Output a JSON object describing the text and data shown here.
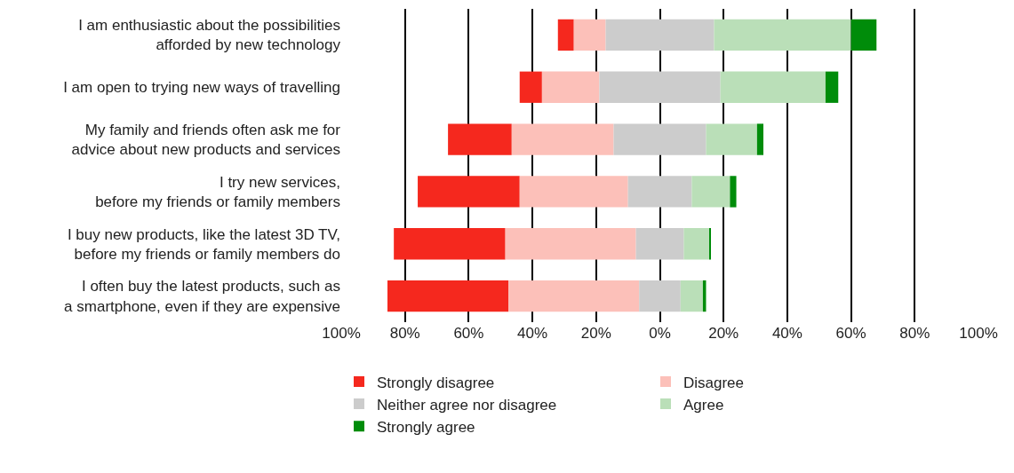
{
  "chart_data": {
    "type": "bar",
    "orientation": "horizontal",
    "categories": [
      "I am enthusiastic about the possibilities\nafforded by new technology",
      "I am open to trying new ways of travelling",
      "My family and friends often ask me for\nadvice about new products and services",
      "I try new services,\nbefore my friends or family members",
      "I buy new products, like the latest 3D TV,\nbefore my friends or family members do",
      "I often buy the latest products, such as\na smartphone, even if they are expensive"
    ],
    "series": [
      {
        "name": "Strongly disagree",
        "color": "#f5281e",
        "values": [
          5,
          7,
          20,
          32,
          35,
          38
        ],
        "base": [
          -32,
          -44,
          -66.5,
          -76,
          -83.5,
          -85.5
        ]
      },
      {
        "name": "Disagree",
        "color": "#fcc0b9",
        "values": [
          10,
          18,
          32,
          34,
          41,
          41
        ],
        "base": [
          -27,
          -37,
          -46.5,
          -44,
          -48.5,
          -47.5
        ]
      },
      {
        "name": "Neither agree nor disagree",
        "color": "#cccccc",
        "values": [
          34,
          38,
          29,
          20,
          15,
          13
        ],
        "base": [
          -17,
          -19,
          -14.5,
          -10,
          -7.5,
          -6.5
        ]
      },
      {
        "name": "Agree",
        "color": "#badfb8",
        "values": [
          43,
          33,
          16,
          12,
          8,
          7
        ],
        "base": [
          17,
          19,
          14.5,
          10,
          7.5,
          6.5
        ]
      },
      {
        "name": "Strongly agree",
        "color": "#008c0a",
        "values": [
          8,
          4,
          2,
          2,
          0.5,
          1
        ],
        "base": [
          60,
          52,
          30.5,
          22,
          15.5,
          13.5
        ]
      }
    ],
    "xlim": [
      -100,
      100
    ],
    "xticks": [
      {
        "value": -100,
        "label": "100%"
      },
      {
        "value": -80,
        "label": "80%"
      },
      {
        "value": -60,
        "label": "60%"
      },
      {
        "value": -40,
        "label": "40%"
      },
      {
        "value": -20,
        "label": "20%"
      },
      {
        "value": 0,
        "label": "0%"
      },
      {
        "value": 20,
        "label": "20%"
      },
      {
        "value": 40,
        "label": "40%"
      },
      {
        "value": 60,
        "label": "60%"
      },
      {
        "value": 80,
        "label": "80%"
      },
      {
        "value": 100,
        "label": "100%"
      }
    ],
    "grid": "x",
    "legend": "bottom"
  }
}
